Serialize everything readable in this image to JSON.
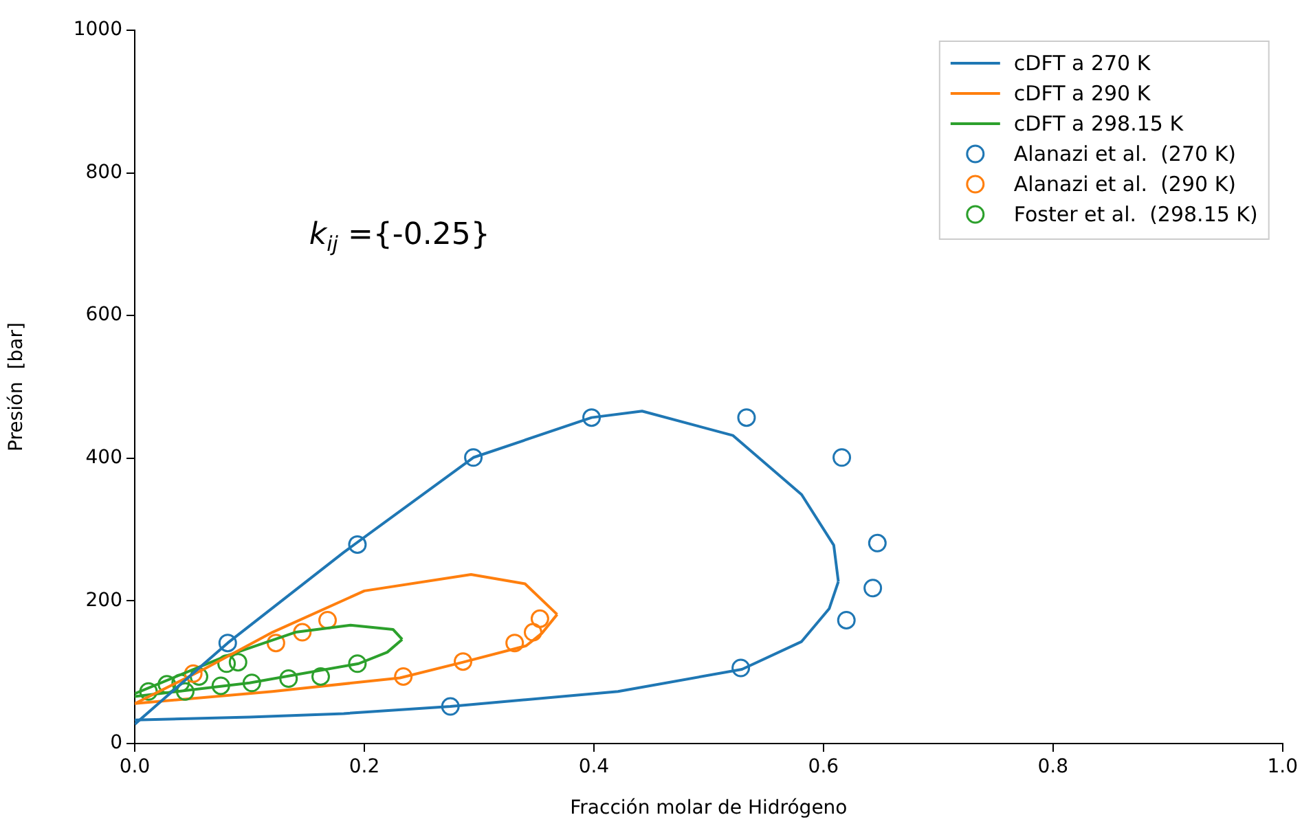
{
  "chart_data": {
    "type": "line",
    "xlabel": "Fracción molar de Hidrógeno",
    "ylabel": "Presión  [bar]",
    "annotations": [
      "k$_{ij}$ ={-0.25}"
    ],
    "xlim": [
      0,
      1
    ],
    "ylim": [
      0,
      1000
    ],
    "xticks": [
      {
        "value": 0,
        "label": "0.0"
      },
      {
        "value": 0.2,
        "label": "0.2"
      },
      {
        "value": 0.4,
        "label": "0.4"
      },
      {
        "value": 0.6,
        "label": "0.6"
      },
      {
        "value": 0.8,
        "label": "0.8"
      },
      {
        "value": 1,
        "label": "1.0"
      }
    ],
    "yticks": [
      0,
      200,
      400,
      600,
      800,
      1000
    ],
    "grid": false,
    "legend": "top right",
    "series": [
      {
        "name": "cDFT a 270 K",
        "type": "line",
        "marker": "none",
        "color": "#1f77b4",
        "x": [
          0,
          0.081,
          0.182,
          0.295,
          0.398,
          0.442,
          0.521,
          0.581,
          0.609,
          0.613
        ],
        "values": [
          27,
          141,
          268,
          401,
          457,
          466,
          432,
          349,
          278,
          227
        ]
      },
      {
        "name": "cDFT a 290 K",
        "type": "line",
        "marker": "none",
        "color": "#ff7f0e",
        "x": [
          0,
          0.06,
          0.12,
          0.2,
          0.293,
          0.34,
          0.368
        ],
        "values": [
          56,
          104,
          156,
          214,
          237,
          224,
          181
        ]
      },
      {
        "name": "cDFT a 298.15 K",
        "type": "line",
        "marker": "none",
        "color": "#2ca02c",
        "x": [
          0,
          0.08,
          0.14,
          0.188,
          0.225,
          0.233
        ],
        "values": [
          70,
          123,
          156,
          166,
          160,
          146
        ]
      },
      {
        "name": "Alanazi et al.  (270 K)",
        "type": "scatter",
        "marker": "circle",
        "color": "#1f77b4",
        "x": [
          0.081,
          0.194,
          0.295,
          0.398,
          0.533,
          0.616,
          0.647,
          0.643,
          0.62,
          0.528,
          0.275
        ],
        "values": [
          141,
          279,
          401,
          457,
          457,
          401,
          281,
          218,
          173,
          106,
          52
        ]
      },
      {
        "name": "Alanazi et al.  (290 K)",
        "type": "scatter",
        "marker": "circle",
        "color": "#ff7f0e",
        "x": [
          0.051,
          0.123,
          0.146,
          0.168,
          0.234,
          0.286,
          0.331,
          0.347,
          0.353
        ],
        "values": [
          98,
          141,
          156,
          173,
          94,
          115,
          141,
          156,
          175
        ]
      },
      {
        "name": "Foster et al.  (298.15 K)",
        "type": "scatter",
        "marker": "circle",
        "color": "#2ca02c",
        "x": [
          0.012,
          0.028,
          0.04,
          0.044,
          0.056,
          0.08,
          0.09,
          0.075,
          0.102,
          0.134,
          0.162,
          0.194
        ],
        "values": [
          73,
          83,
          85,
          73,
          94,
          112,
          114,
          81,
          85,
          91,
          94,
          112
        ]
      },
      {
        "type": "line",
        "marker": "none",
        "color": "#1f77b4",
        "x": [
          0.613,
          0.605,
          0.581,
          0.529,
          0.421,
          0.275,
          0.182,
          0.1,
          0
        ],
        "values": [
          227,
          189,
          143,
          104,
          73,
          52,
          42,
          37,
          33
        ]
      },
      {
        "type": "line",
        "marker": "none",
        "color": "#ff7f0e",
        "x": [
          0.368,
          0.355,
          0.341,
          0.286,
          0.231,
          0.12,
          0
        ],
        "values": [
          181,
          155,
          137,
          114,
          92,
          73,
          56
        ]
      },
      {
        "type": "line",
        "marker": "none",
        "color": "#2ca02c",
        "x": [
          0.233,
          0.22,
          0.195,
          0.1,
          0
        ],
        "values": [
          146,
          128,
          112,
          85,
          66
        ]
      }
    ]
  }
}
